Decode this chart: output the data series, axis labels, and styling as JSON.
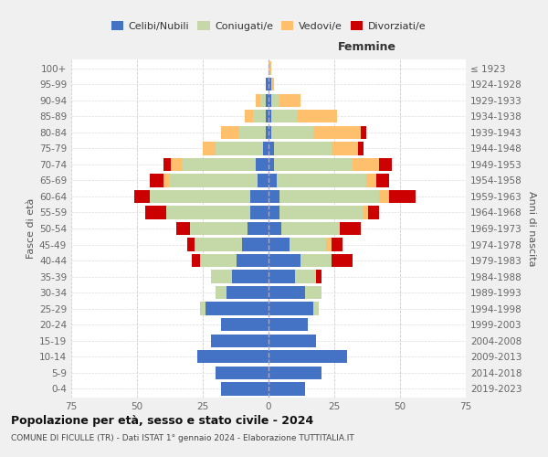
{
  "age_groups": [
    "0-4",
    "5-9",
    "10-14",
    "15-19",
    "20-24",
    "25-29",
    "30-34",
    "35-39",
    "40-44",
    "45-49",
    "50-54",
    "55-59",
    "60-64",
    "65-69",
    "70-74",
    "75-79",
    "80-84",
    "85-89",
    "90-94",
    "95-99",
    "100+"
  ],
  "birth_years": [
    "2019-2023",
    "2014-2018",
    "2009-2013",
    "2004-2008",
    "1999-2003",
    "1994-1998",
    "1989-1993",
    "1984-1988",
    "1979-1983",
    "1974-1978",
    "1969-1973",
    "1964-1968",
    "1959-1963",
    "1954-1958",
    "1949-1953",
    "1944-1948",
    "1939-1943",
    "1934-1938",
    "1929-1933",
    "1924-1928",
    "≤ 1923"
  ],
  "male": {
    "celibi": [
      18,
      20,
      27,
      22,
      18,
      24,
      16,
      14,
      12,
      10,
      8,
      7,
      7,
      4,
      5,
      2,
      1,
      1,
      1,
      1,
      0
    ],
    "coniugati": [
      0,
      0,
      0,
      0,
      0,
      2,
      4,
      8,
      14,
      18,
      22,
      32,
      38,
      34,
      28,
      18,
      10,
      5,
      2,
      0,
      0
    ],
    "vedovi": [
      0,
      0,
      0,
      0,
      0,
      0,
      0,
      0,
      0,
      0,
      0,
      0,
      0,
      2,
      4,
      5,
      7,
      3,
      2,
      0,
      0
    ],
    "divorziati": [
      0,
      0,
      0,
      0,
      0,
      0,
      0,
      0,
      3,
      3,
      5,
      8,
      6,
      5,
      3,
      0,
      0,
      0,
      0,
      0,
      0
    ]
  },
  "female": {
    "nubili": [
      14,
      20,
      30,
      18,
      15,
      17,
      14,
      10,
      12,
      8,
      5,
      4,
      4,
      3,
      2,
      2,
      1,
      1,
      1,
      1,
      0
    ],
    "coniugate": [
      0,
      0,
      0,
      0,
      0,
      2,
      6,
      8,
      12,
      14,
      22,
      32,
      38,
      34,
      30,
      22,
      16,
      10,
      3,
      0,
      0
    ],
    "vedove": [
      0,
      0,
      0,
      0,
      0,
      0,
      0,
      0,
      0,
      2,
      0,
      2,
      4,
      4,
      10,
      10,
      18,
      15,
      8,
      1,
      1
    ],
    "divorziate": [
      0,
      0,
      0,
      0,
      0,
      0,
      0,
      2,
      8,
      4,
      8,
      4,
      10,
      5,
      5,
      2,
      2,
      0,
      0,
      0,
      0
    ]
  },
  "colors": {
    "celibi": "#4472c4",
    "coniugati": "#c5d9a8",
    "vedovi": "#ffc06e",
    "divorziati": "#cc0000"
  },
  "xlim": 75,
  "title": "Popolazione per età, sesso e stato civile - 2024",
  "subtitle": "COMUNE DI FICULLE (TR) - Dati ISTAT 1° gennaio 2024 - Elaborazione TUTTITALIA.IT",
  "xlabel_right": "Femmine",
  "ylabel_left": "Fasce di età",
  "ylabel_right": "Anni di nascita",
  "bg_color": "#f0f0f0",
  "plot_bg_color": "#ffffff"
}
